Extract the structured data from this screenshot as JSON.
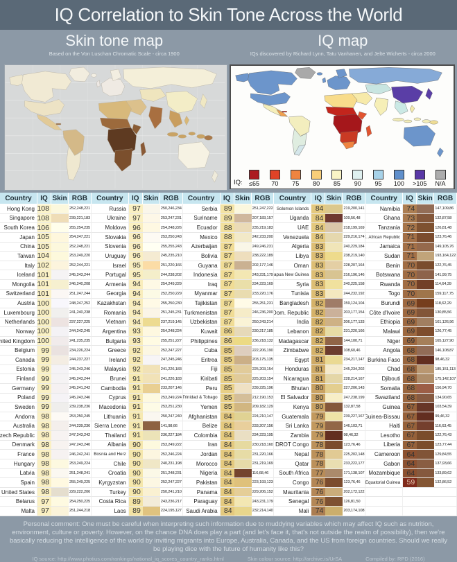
{
  "title": "IQ Correlation to Skin Tone Across the World",
  "left_panel": {
    "title": "Skin tone map",
    "subtitle": "Based on the Von Luschan Chromatic Scale - circa 1900"
  },
  "right_panel": {
    "title": "IQ map",
    "subtitle": "IQs discovered by Richard Lynn, Tatu Vanhanen, and Jelte Wicherts - circa 2000"
  },
  "iq_legend": {
    "label": "IQ:",
    "entries": [
      {
        "label": "≤65",
        "color": "#AC1B21"
      },
      {
        "label": "70",
        "color": "#DF4327"
      },
      {
        "label": "75",
        "color": "#EF8440"
      },
      {
        "label": "80",
        "color": "#F8CE79"
      },
      {
        "label": "85",
        "color": "#FAF4C6"
      },
      {
        "label": "90",
        "color": "#DFF0EF"
      },
      {
        "label": "95",
        "color": "#A7D2E8"
      },
      {
        "label": "100",
        "color": "#5F8FCB"
      },
      {
        "label": ">105",
        "color": "#5938A6"
      },
      {
        "label": "N/A",
        "color": "#ACACAC"
      }
    ]
  },
  "table": {
    "headers": [
      "Country",
      "IQ",
      "Skin",
      "RGB"
    ],
    "group_count": 5,
    "rows_per_group": 33
  },
  "iq_color_scale": [
    {
      "iq": 59,
      "color": "#7F2A1B"
    },
    {
      "iq": 64,
      "color": "#8C5130"
    },
    {
      "iq": 67,
      "color": "#96613A"
    },
    {
      "iq": 70,
      "color": "#A06C43"
    },
    {
      "iq": 74,
      "color": "#AB7D51"
    },
    {
      "iq": 78,
      "color": "#BC915A"
    },
    {
      "iq": 82,
      "color": "#D5B269"
    },
    {
      "iq": 84,
      "color": "#E4C97E"
    },
    {
      "iq": 87,
      "color": "#F0DC95"
    },
    {
      "iq": 90,
      "color": "#F5E7AC"
    },
    {
      "iq": 94,
      "color": "#F9EDBC"
    },
    {
      "iq": 97,
      "color": "#FAF0C2"
    },
    {
      "iq": 108,
      "color": "#FBF3CA"
    }
  ],
  "chart_data": {
    "type": "table",
    "columns": [
      "Country",
      "IQ",
      "Skin RGB"
    ],
    "rows": [
      [
        "Hong Kong",
        108,
        "252,248,221"
      ],
      [
        "Singapore",
        108,
        "239,221,183"
      ],
      [
        "South Korea",
        106,
        "255,254,235"
      ],
      [
        "Japan",
        105,
        "254,247,221"
      ],
      [
        "China",
        105,
        "252,248,221"
      ],
      [
        "Taiwan",
        104,
        "253,249,220"
      ],
      [
        "Italy",
        102,
        "252,244,221"
      ],
      [
        "Iceland",
        101,
        "245,243,244"
      ],
      [
        "Mongolia",
        101,
        "246,240,208"
      ],
      [
        "Switzerland",
        101,
        "251,247,244"
      ],
      [
        "Austria",
        100,
        "248,247,252"
      ],
      [
        "Luxembourg",
        100,
        "241,240,238"
      ],
      [
        "Netherlands",
        100,
        "237,227,225"
      ],
      [
        "Norway",
        100,
        "244,242,245"
      ],
      [
        "United Kingdom",
        100,
        "241,235,235"
      ],
      [
        "Belgium",
        99,
        "234,226,224"
      ],
      [
        "Canada",
        99,
        "244,237,227"
      ],
      [
        "Estonia",
        99,
        "245,243,246"
      ],
      [
        "Finland",
        99,
        "245,243,244"
      ],
      [
        "Germany",
        99,
        "245,241,242"
      ],
      [
        "Poland",
        99,
        "245,243,246"
      ],
      [
        "Sweden",
        99,
        "239,238,236"
      ],
      [
        "Andorra",
        98,
        "253,250,245"
      ],
      [
        "Australia",
        98,
        "244,239,236"
      ],
      [
        "Czech Republic",
        98,
        "247,243,242"
      ],
      [
        "Denmark",
        98,
        "247,243,240"
      ],
      [
        "France",
        98,
        "246,242,241"
      ],
      [
        "Hungary",
        98,
        "253,249,224"
      ],
      [
        "Latvia",
        98,
        "251,248,241"
      ],
      [
        "Spain",
        98,
        "255,249,225"
      ],
      [
        "United States",
        98,
        "229,222,206"
      ],
      [
        "Belarus",
        97,
        "254,250,225"
      ],
      [
        "Malta",
        97,
        "251,244,218"
      ],
      [
        "Russia",
        97,
        "250,246,234"
      ],
      [
        "Ukraine",
        97,
        "253,247,231"
      ],
      [
        "Moldova",
        96,
        "254,248,226"
      ],
      [
        "Slovakia",
        96,
        "253,250,243"
      ],
      [
        "Slovenia",
        96,
        "255,255,243"
      ],
      [
        "Uruguay",
        96,
        "245,235,210"
      ],
      [
        "Israel",
        95,
        "251,220,166"
      ],
      [
        "Portugal",
        95,
        "244,238,202"
      ],
      [
        "Armenia",
        94,
        "254,249,229"
      ],
      [
        "Georgia",
        94,
        "252,250,229"
      ],
      [
        "Kazakhstan",
        94,
        "255,250,230"
      ],
      [
        "Romania",
        94,
        "251,245,231"
      ],
      [
        "Vietnam",
        94,
        "237,219,145"
      ],
      [
        "Argentina",
        93,
        "254,248,224"
      ],
      [
        "Bulgaria",
        93,
        "255,251,227"
      ],
      [
        "Greece",
        92,
        "252,247,227"
      ],
      [
        "Ireland",
        92,
        "247,245,246"
      ],
      [
        "Malaysia",
        92,
        "241,226,183"
      ],
      [
        "Brunei",
        91,
        "241,226,183"
      ],
      [
        "Cambodia",
        91,
        "233,207,146"
      ],
      [
        "Cyprus",
        91,
        "253,249,224"
      ],
      [
        "Macedonia",
        91,
        "253,251,230"
      ],
      [
        "Lithuania",
        91,
        "250,247,240"
      ],
      [
        "Sierra Leone",
        91,
        "141,98,66"
      ],
      [
        "Thailand",
        91,
        "236,227,184"
      ],
      [
        "Albania",
        90,
        "253,249,222"
      ],
      [
        "Bosnia and Herz",
        90,
        "252,246,224"
      ],
      [
        "Chile",
        90,
        "240,231,198"
      ],
      [
        "Croatia",
        90,
        "251,248,231"
      ],
      [
        "Kyrgyzstan",
        90,
        "252,247,227"
      ],
      [
        "Turkey",
        90,
        "250,241,210"
      ],
      [
        "Costa Rica",
        89,
        "243,236,217"
      ],
      [
        "Laos",
        89,
        "224,195,127"
      ],
      [
        "Serbia",
        89,
        "251,247,222"
      ],
      [
        "Suriname",
        89,
        "207,183,157"
      ],
      [
        "Ecuador",
        88,
        "235,219,183"
      ],
      [
        "Mexico",
        88,
        "242,233,200"
      ],
      [
        "Azerbaijan",
        87,
        "249,246,231"
      ],
      [
        "Bolivia",
        87,
        "238,222,189"
      ],
      [
        "Guyana",
        87,
        "202,177,146"
      ],
      [
        "Indonesia",
        87,
        "243,231,179"
      ],
      [
        "Iraq",
        87,
        "234,223,169"
      ],
      [
        "Myanmar",
        87,
        "233,220,176"
      ],
      [
        "Tajikistan",
        87,
        "255,251,231"
      ],
      [
        "Turkmenistan",
        87,
        "246,236,200"
      ],
      [
        "Uzbekistan",
        87,
        "250,243,214"
      ],
      [
        "Kuwait",
        86,
        "230,217,185"
      ],
      [
        "Philippines",
        86,
        "236,218,132"
      ],
      [
        "Cuba",
        85,
        "222,206,190"
      ],
      [
        "Eritrea",
        85,
        "203,175,135"
      ],
      [
        "Fiji",
        85,
        "225,203,154"
      ],
      [
        "Kiribati",
        85,
        "225,203,154"
      ],
      [
        "Peru",
        85,
        "239,225,196"
      ],
      [
        "Trinidad & Tobago",
        85,
        "212,190,153"
      ],
      [
        "Yemen",
        85,
        "209,182,129"
      ],
      [
        "Afghanistan",
        84,
        "224,210,147"
      ],
      [
        "Belize",
        84,
        "233,207,156"
      ],
      [
        "Colombia",
        84,
        "234,223,195"
      ],
      [
        "Iran",
        84,
        "230,218,160"
      ],
      [
        "Jordan",
        84,
        "231,220,166"
      ],
      [
        "Morocco",
        84,
        "231,219,169"
      ],
      [
        "Nigeria",
        84,
        "116,68,46"
      ],
      [
        "Pakistan",
        84,
        "223,193,123"
      ],
      [
        "Panama",
        84,
        "229,206,152"
      ],
      [
        "Paraguay",
        84,
        "243,231,179"
      ],
      [
        "Saudi Arabia",
        84,
        "232,214,140"
      ],
      [
        "Solomon Islands",
        84,
        "219,200,141"
      ],
      [
        "Uganda",
        84,
        "109,56,48"
      ],
      [
        "UAE",
        84,
        "218,199,169"
      ],
      [
        "Venezuela",
        84,
        "229,216,174"
      ],
      [
        "Algeria",
        83,
        "240,229,184"
      ],
      [
        "Libya",
        83,
        "238,219,140"
      ],
      [
        "Oman",
        83,
        "228,207,164"
      ],
      [
        "Papua New Guinea",
        83,
        "216,196,146"
      ],
      [
        "Syria",
        83,
        "240,225,158"
      ],
      [
        "Tunisia",
        83,
        "244,232,192"
      ],
      [
        "Bangladesh",
        82,
        "159,124,104"
      ],
      [
        "Dom. Republic",
        82,
        "203,177,154"
      ],
      [
        "India",
        82,
        "206,177,133"
      ],
      [
        "Lebanon",
        82,
        "231,220,166"
      ],
      [
        "Madagascar",
        82,
        "144,100,71"
      ],
      [
        "Zimbabwe",
        82,
        "108,60,46"
      ],
      [
        "Egypt",
        81,
        "234,217,147"
      ],
      [
        "Honduras",
        81,
        "245,234,202"
      ],
      [
        "Nicaragua",
        81,
        "228,214,167"
      ],
      [
        "Bhutan",
        80,
        "227,206,143"
      ],
      [
        "El Salvador",
        80,
        "247,238,199"
      ],
      [
        "Kenya",
        80,
        "132,87,58"
      ],
      [
        "Guatemala",
        79,
        "239,227,167"
      ],
      [
        "Sri Lanka",
        79,
        "146,103,71"
      ],
      [
        "Zambia",
        79,
        "98,46,32"
      ],
      [
        "DROT Congo",
        78,
        "123,76,46"
      ],
      [
        "Nepal",
        78,
        "225,202,148"
      ],
      [
        "Qatar",
        78,
        "233,222,177"
      ],
      [
        "South Africa",
        77,
        "171,138,107"
      ],
      [
        "Congo",
        76,
        "123,76,46"
      ],
      [
        "Mauritania",
        76,
        "202,172,122"
      ],
      [
        "Senegal",
        76,
        "126,81,50"
      ],
      [
        "Mali",
        74,
        "203,174,108"
      ],
      [
        "Namibia",
        74,
        "147,109,86"
      ],
      [
        "Ghana",
        73,
        "132,87,58"
      ],
      [
        "Tanzania",
        72,
        "126,81,48"
      ],
      [
        "C. African Republic",
        71,
        "123,76,46"
      ],
      [
        "Jamaica",
        71,
        "149,105,76"
      ],
      [
        "Sudan",
        71,
        "193,164,122"
      ],
      [
        "Benin",
        70,
        "122,76,45"
      ],
      [
        "Botswana",
        70,
        "141,99,75"
      ],
      [
        "Rwanda",
        70,
        "114,64,39"
      ],
      [
        "Togo",
        70,
        "159,117,75"
      ],
      [
        "Burundi",
        69,
        "118,62,29"
      ],
      [
        "Côte d'Ivoire",
        69,
        "130,85,56"
      ],
      [
        "Ethiopia",
        69,
        "161,126,96"
      ],
      [
        "Malawi",
        69,
        "126,77,45"
      ],
      [
        "Niger",
        69,
        "165,127,90"
      ],
      [
        "Angola",
        68,
        "146,108,87"
      ],
      [
        "Burkina Faso",
        68,
        "98,46,32"
      ],
      [
        "Chad",
        68,
        "185,151,113"
      ],
      [
        "Djibouti",
        68,
        "175,142,107"
      ],
      [
        "Somalia",
        68,
        "156,94,70"
      ],
      [
        "Swaziland",
        68,
        "134,90,65"
      ],
      [
        "Guinea",
        67,
        "103,54,39"
      ],
      [
        "Guinea-Bissau",
        67,
        "99,46,32"
      ],
      [
        "Haiti",
        67,
        "116,63,45"
      ],
      [
        "Lesotho",
        67,
        "122,76,43"
      ],
      [
        "Liberia",
        67,
        "123,77,44"
      ],
      [
        "Cameroon",
        64,
        "129,84,55"
      ],
      [
        "Gabon",
        64,
        "137,93,66"
      ],
      [
        "Mozambique",
        64,
        "133,89,62"
      ],
      [
        "Equatorial Guinea",
        59,
        "132,86,52"
      ]
    ]
  },
  "footer": {
    "comment": "Personal comment: One must be careful when interpreting such information due to muddying variables which may affect IQ such as nutrition, environment, culture or poverty. However, on the chance DNA does play a part (and let's face it, that's not outside the realm of possibility), then we're basically reducing the intelligence of the world by inviting migrants into Europe, Australia, Canada,  and the US from foreign countries. Should we really be playing dice with the future of humanity like this?",
    "sources": [
      "IQ source: http://www.photius.com/rankings/national_iq_scores_country_ranks.html",
      "Skin colour source: http://archive.is/UrSA",
      "Compiled by: RPD (2016)"
    ]
  }
}
